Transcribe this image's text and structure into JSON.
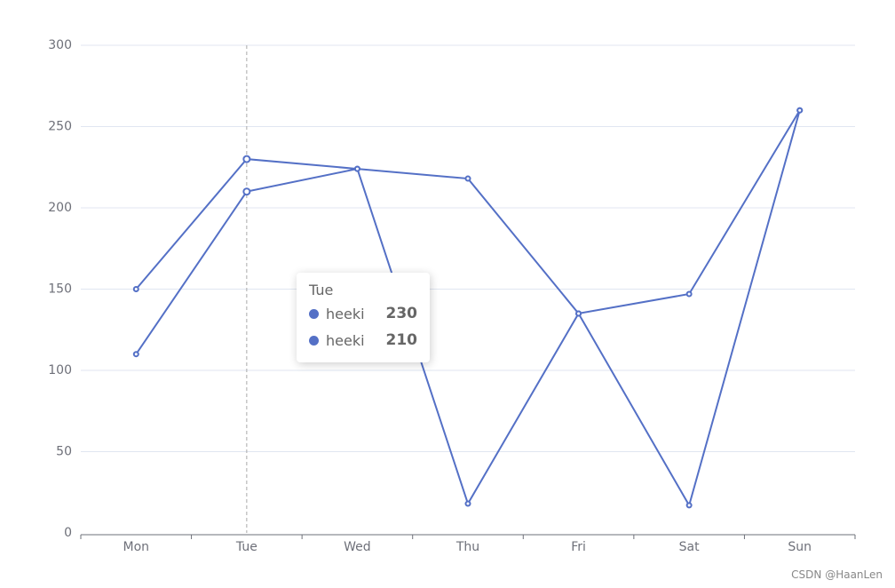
{
  "chart_data": {
    "type": "line",
    "categories": [
      "Mon",
      "Tue",
      "Wed",
      "Thu",
      "Fri",
      "Sat",
      "Sun"
    ],
    "series": [
      {
        "name": "heeki",
        "color": "#5470c6",
        "values": [
          150,
          230,
          224,
          218,
          135,
          17,
          260
        ]
      },
      {
        "name": "heeki",
        "color": "#5470c6",
        "values": [
          110,
          210,
          224,
          18,
          135,
          147,
          260
        ]
      }
    ],
    "ylim": [
      0,
      300
    ],
    "yticks": [
      0,
      50,
      100,
      150,
      200,
      250,
      300
    ],
    "grid": true,
    "tooltip_index": 1
  },
  "watermark": "CSDN @HaanLen"
}
